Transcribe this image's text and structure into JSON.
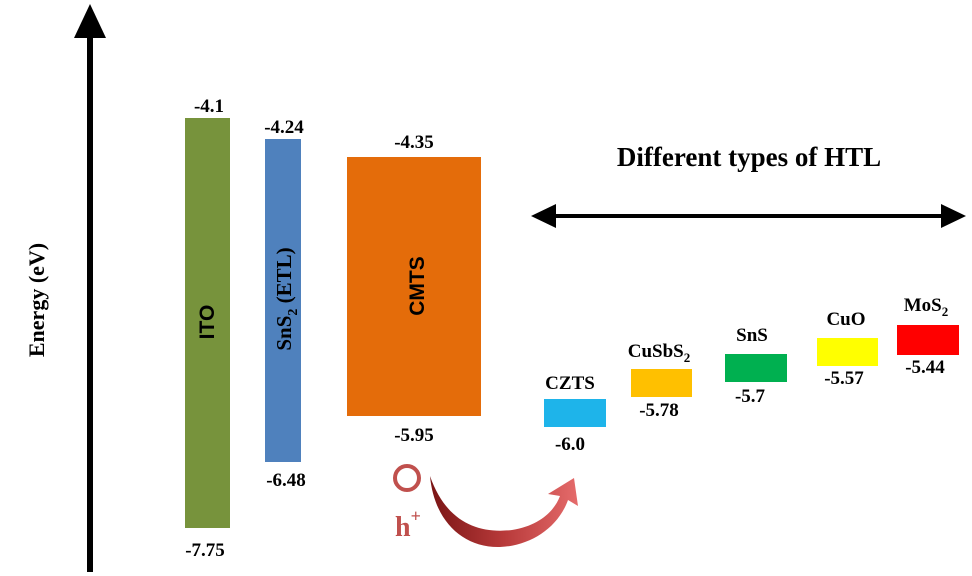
{
  "diagram": {
    "axis_label": "Energy (eV)",
    "htl_heading": "Different types of HTL",
    "hole_label": "h",
    "hole_superscript": "+",
    "layers": [
      {
        "id": "ito",
        "label": "ITO",
        "top": "-4.1",
        "bottom": "-7.75",
        "color": "#77933c"
      },
      {
        "id": "sns2",
        "label_main": "SnS",
        "label_sub": "2",
        "label_rest": " (ETL)",
        "top": "-4.24",
        "bottom": "-6.48",
        "color": "#4f81bd"
      },
      {
        "id": "cmts",
        "label": "CMTS",
        "top": "-4.35",
        "bottom": "-5.95",
        "color": "#e46c0a"
      }
    ],
    "htl_materials": [
      {
        "id": "czts",
        "label": "CZTS",
        "value": "-6.0",
        "color": "#1eb4ea"
      },
      {
        "id": "cusbs2",
        "label_main": "CuSbS",
        "label_sub": "2",
        "value": "-5.78",
        "color": "#ffc000"
      },
      {
        "id": "sns",
        "label": "SnS",
        "value": "-5.7",
        "color": "#00b050"
      },
      {
        "id": "cuo",
        "label": "CuO",
        "value": "-5.57",
        "color": "#ffff00"
      },
      {
        "id": "mos2",
        "label_main": "MoS",
        "label_sub": "2",
        "value": "-5.44",
        "color": "#ff0000"
      }
    ],
    "colors": {
      "hole": "#c0504d",
      "arrow_dark": "#8b1c1c",
      "arrow_light": "#e06060",
      "axis": "#000000"
    }
  }
}
